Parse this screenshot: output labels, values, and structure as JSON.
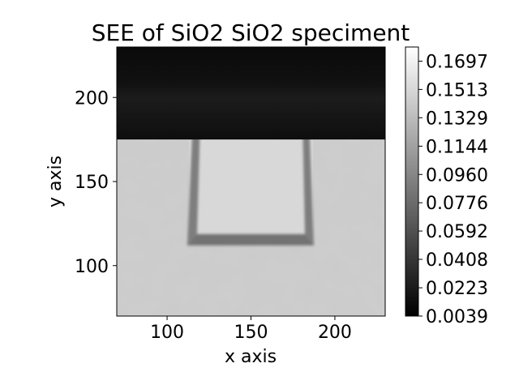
{
  "chart_data": {
    "type": "heatmap",
    "title": "SEE of SiO2 SiO2 speciment",
    "xlabel": "x axis",
    "ylabel": "y axis",
    "xlim": [
      70,
      230
    ],
    "ylim": [
      70,
      230
    ],
    "x_ticks": [
      "100",
      "150",
      "200"
    ],
    "x_tick_values": [
      100,
      150,
      200
    ],
    "y_ticks": [
      "100",
      "150",
      "200"
    ],
    "y_tick_values": [
      100,
      150,
      200
    ],
    "colormap": "gray",
    "colorbar": {
      "vmin": 0.0039,
      "vmax": 0.1789,
      "ticks": [
        "0.0039",
        "0.0223",
        "0.0408",
        "0.0592",
        "0.0776",
        "0.0960",
        "0.1144",
        "0.1329",
        "0.1513",
        "0.1697"
      ],
      "tick_values": [
        0.0039,
        0.0223,
        0.0408,
        0.0592,
        0.0776,
        0.096,
        0.1144,
        0.1329,
        0.1513,
        0.1697
      ]
    },
    "regions": [
      {
        "name": "",
        "x": [
          70,
          230
        ],
        "y": [
          70,
          175
        ],
        "value": 0.145
      },
      {
        "name": "",
        "x": [
          70,
          230
        ],
        "y": [
          175,
          230
        ],
        "value": 0.012
      },
      {
        "name": "",
        "x": [
          113,
          187
        ],
        "y": [
          112,
          187
        ],
        "value": 0.152,
        "edge_value": 0.07
      }
    ]
  }
}
